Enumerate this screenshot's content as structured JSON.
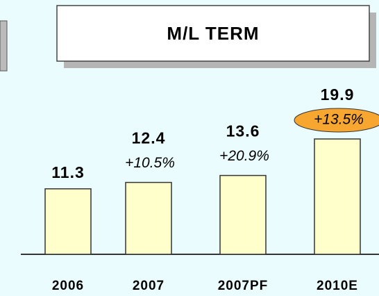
{
  "chart_data": {
    "type": "bar",
    "title": "M/L TERM",
    "categories": [
      "2006",
      "2007",
      "2007PF",
      "2010E"
    ],
    "values": [
      11.3,
      12.4,
      13.6,
      19.9
    ],
    "growth_labels": [
      null,
      "+10.5%",
      "+20.9%",
      "+13.5%"
    ],
    "color": "#ffffcc",
    "highlight_index": 3,
    "highlight_color": "#f7a630"
  }
}
